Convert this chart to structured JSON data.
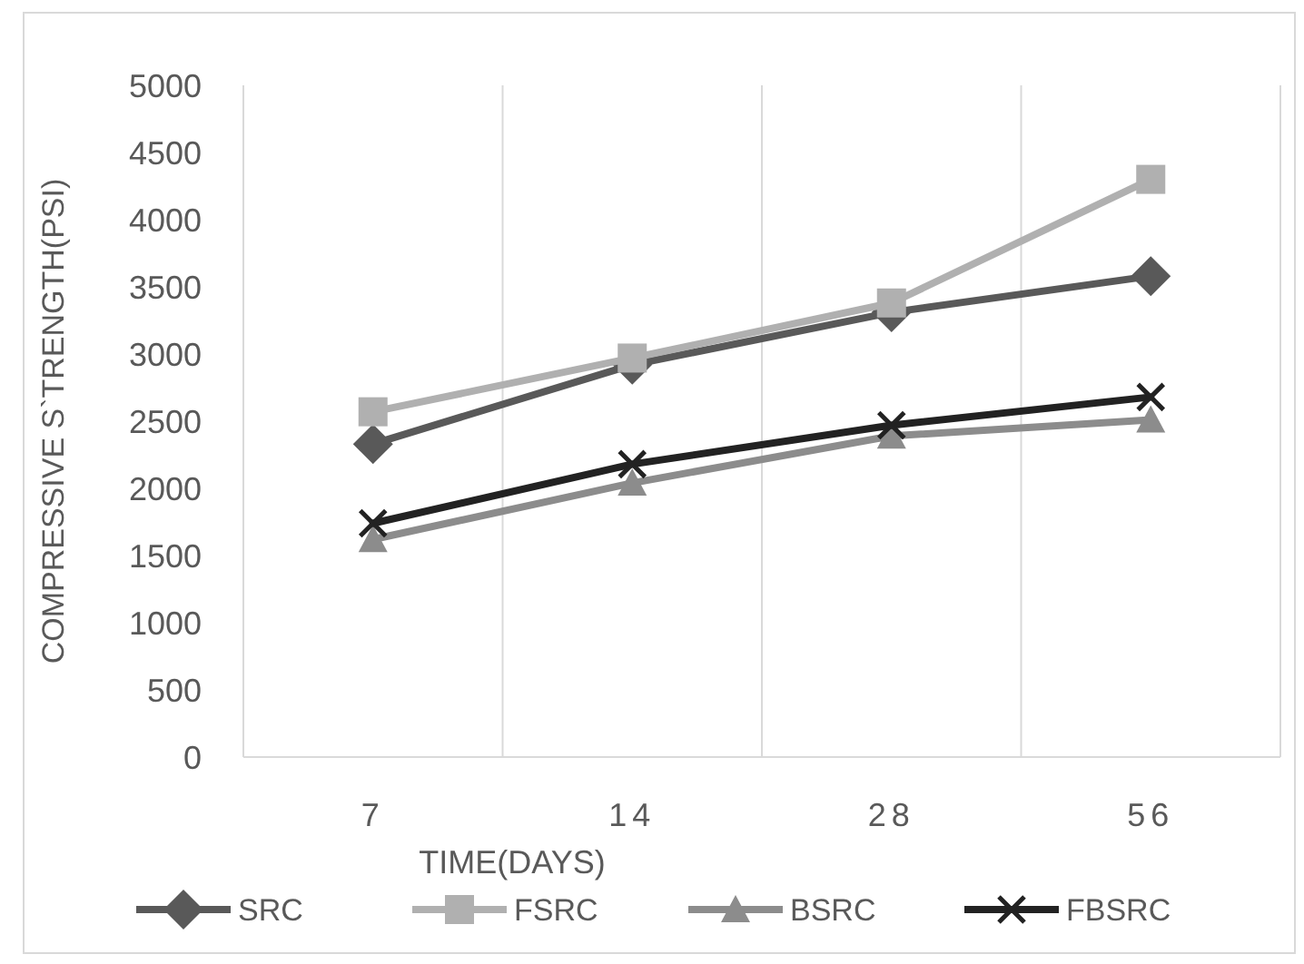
{
  "chart_data": {
    "type": "line",
    "xlabel": "TIME(DAYS)",
    "ylabel": "COMPRESSIVE S`TRENGTH(PSI)",
    "categories": [
      "7",
      "14",
      "28",
      "56"
    ],
    "series": [
      {
        "name": "SRC",
        "color": "#595959",
        "marker": "diamond",
        "values": [
          2330,
          2920,
          3310,
          3580
        ]
      },
      {
        "name": "FSRC",
        "color": "#b0b0b0",
        "marker": "square",
        "values": [
          2570,
          2970,
          3380,
          4300
        ]
      },
      {
        "name": "BSRC",
        "color": "#8c8c8c",
        "marker": "triangle",
        "values": [
          1620,
          2040,
          2390,
          2510
        ]
      },
      {
        "name": "FBSRC",
        "color": "#222222",
        "marker": "cross",
        "values": [
          1740,
          2180,
          2470,
          2680
        ]
      }
    ],
    "ylim": [
      0,
      5000
    ],
    "yticks": [
      0,
      500,
      1000,
      1500,
      2000,
      2500,
      3000,
      3500,
      4000,
      4500,
      5000
    ],
    "grid": "x",
    "legend": "bottom"
  }
}
